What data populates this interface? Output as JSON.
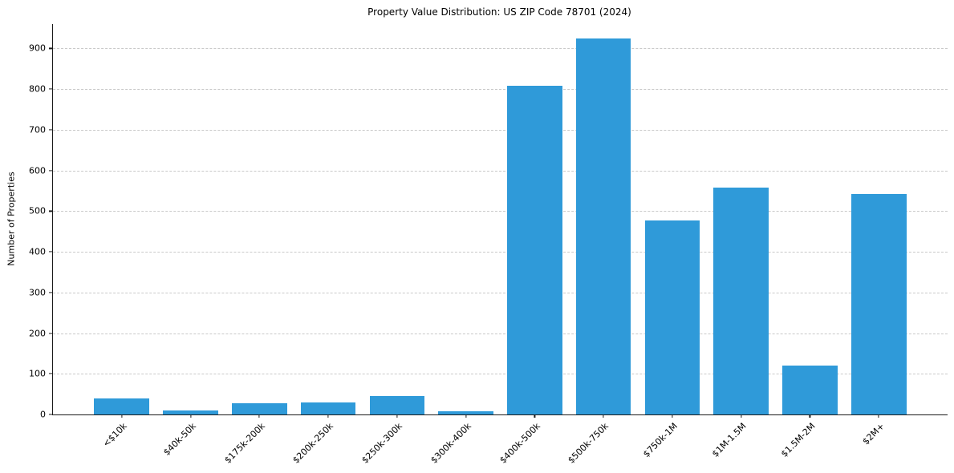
{
  "chart_data": {
    "type": "bar",
    "title": "Property Value Distribution: US ZIP Code 78701 (2024)",
    "xlabel": "",
    "ylabel": "Number of Properties",
    "categories": [
      "<$10k",
      "$40k-50k",
      "$175k-200k",
      "$200k-250k",
      "$250k-300k",
      "$300k-400k",
      "$400k-500k",
      "$500k-750k",
      "$750k-1M",
      "$1M-1.5M",
      "$1.5M-2M",
      "$2M+"
    ],
    "values": [
      40,
      10,
      28,
      30,
      45,
      8,
      808,
      925,
      478,
      558,
      120,
      542
    ],
    "ylim": [
      0,
      960
    ],
    "yticks": [
      0,
      100,
      200,
      300,
      400,
      500,
      600,
      700,
      800,
      900
    ],
    "bar_color": "#2f9ad9",
    "grid": true,
    "grid_style": "dashed",
    "grid_color": "#c9c9c9",
    "spine_color": "#1a1a1a",
    "background": "#ffffff",
    "legend": "none"
  }
}
